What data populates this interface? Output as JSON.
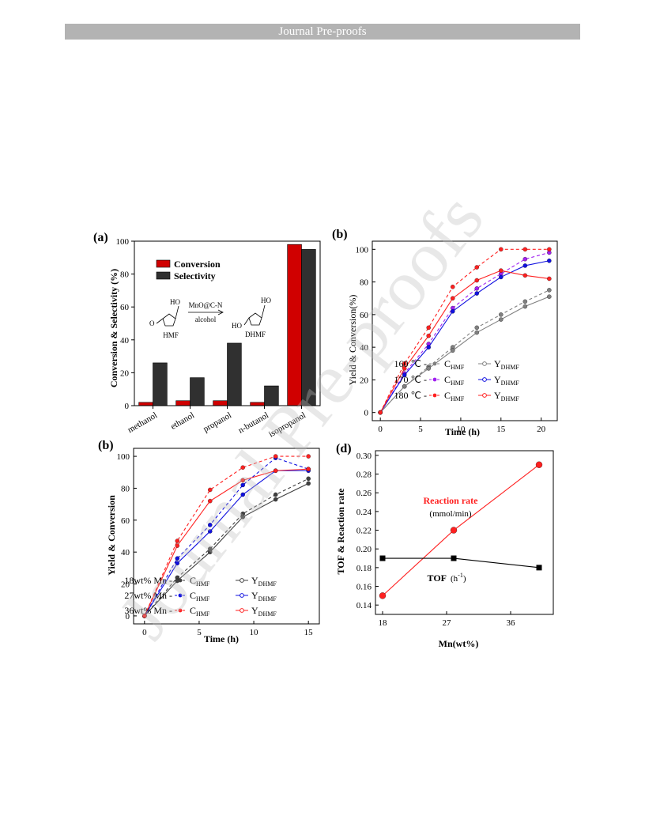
{
  "banner": {
    "text": "Journal Pre-proofs"
  },
  "watermark": {
    "text": "Journal Pre-proofs"
  },
  "chart_data": [
    {
      "panel_label": "(a)",
      "type": "bar",
      "ylabel": "Conversion & Selectivity (%)",
      "categories": [
        "methanol",
        "ethanol",
        "propanol",
        "n-butanol",
        "isopropanol"
      ],
      "series": [
        {
          "name": "Conversion",
          "values": [
            2,
            3,
            3,
            2,
            98
          ],
          "color": "#d00000"
        },
        {
          "name": "Selectivity",
          "values": [
            26,
            17,
            38,
            12,
            95
          ],
          "color": "#303030"
        }
      ],
      "ylim": [
        0,
        100
      ],
      "yticks": [
        0,
        20,
        40,
        60,
        80,
        100
      ],
      "legend_placement": "top-left",
      "scheme": {
        "reactant": "HMF",
        "product": "DHMF",
        "catalyst": "MnO@C-N",
        "solvent": "alcohol",
        "ho_label_1": "HO",
        "o_label_1": "O",
        "ho_label_2": "HO",
        "ho_label_3": "HO"
      }
    },
    {
      "panel_label": "(b)",
      "type": "line",
      "xlabel": "Time (h)",
      "ylabel": "Yield & Conversion(%)",
      "x": [
        0,
        3,
        6,
        9,
        12,
        15,
        18,
        21
      ],
      "xlim": [
        -1,
        22
      ],
      "ylim": [
        -5,
        105
      ],
      "xticks": [
        0,
        5,
        10,
        15,
        20
      ],
      "yticks": [
        0,
        20,
        40,
        60,
        80,
        100
      ],
      "series": [
        {
          "name": "C_HMF",
          "temp": "160 ℃",
          "style": "dashed",
          "color": "#808080",
          "values": [
            0,
            16,
            28,
            40,
            52,
            60,
            68,
            75
          ]
        },
        {
          "name": "Y_DHMF",
          "temp": "160 ℃",
          "style": "solid",
          "color": "#808080",
          "values": [
            0,
            16,
            27,
            38,
            49,
            57,
            65,
            71
          ]
        },
        {
          "name": "C_HMF",
          "temp": "170 ℃",
          "style": "dashed",
          "color": "#a020f0",
          "values": [
            0,
            24,
            42,
            64,
            76,
            85,
            94,
            98
          ]
        },
        {
          "name": "Y_DHMF",
          "temp": "170 ℃",
          "style": "solid",
          "color": "#1010e0",
          "values": [
            0,
            23,
            40,
            62,
            73,
            83,
            90,
            93
          ]
        },
        {
          "name": "C_HMF",
          "temp": "180 ℃",
          "style": "dashed",
          "color": "#ff2020",
          "values": [
            0,
            30,
            52,
            77,
            89,
            100,
            100,
            100
          ]
        },
        {
          "name": "Y_DHMF",
          "temp": "180 ℃",
          "style": "solid",
          "color": "#ff2020",
          "values": [
            0,
            27,
            47,
            70,
            81,
            87,
            84,
            82
          ]
        }
      ],
      "legend": [
        {
          "label": "160 ℃ -",
          "c": "C",
          "c_sub": "HMF",
          "y": "Y",
          "y_sub": "DHMF"
        },
        {
          "label": "170 ℃ -",
          "c": "C",
          "c_sub": "HMF",
          "y": "Y",
          "y_sub": "DHMF"
        },
        {
          "label": "180 ℃ -",
          "c": "C",
          "c_sub": "HMF",
          "y": "Y",
          "y_sub": "DHMF"
        }
      ],
      "legend_placement": "bottom-right"
    },
    {
      "panel_label": "(b)",
      "type": "line",
      "xlabel": "Time (h)",
      "ylabel": "Yield & Conversion",
      "x": [
        0,
        3,
        6,
        9,
        12,
        15
      ],
      "xlim": [
        -1,
        16
      ],
      "ylim": [
        -5,
        105
      ],
      "xticks": [
        0,
        5,
        10,
        15
      ],
      "yticks": [
        0,
        20,
        40,
        60,
        80,
        100
      ],
      "series": [
        {
          "name": "C_HMF",
          "loading": "18wt% Mn",
          "style": "dashed",
          "color": "#404040",
          "values": [
            0,
            24,
            42,
            64,
            76,
            86
          ]
        },
        {
          "name": "Y_DHMF",
          "loading": "18wt% Mn",
          "style": "solid",
          "color": "#404040",
          "values": [
            0,
            22,
            40,
            62,
            73,
            83
          ]
        },
        {
          "name": "C_HMF",
          "loading": "27wt% Mn",
          "style": "dashed",
          "color": "#1010e0",
          "values": [
            0,
            36,
            57,
            82,
            99,
            92
          ]
        },
        {
          "name": "Y_DHMF",
          "loading": "27wt% Mn",
          "style": "solid",
          "color": "#1010e0",
          "values": [
            0,
            33,
            53,
            76,
            91,
            91
          ]
        },
        {
          "name": "C_HMF",
          "loading": "36wt% Mn",
          "style": "dashed",
          "color": "#ff2020",
          "values": [
            0,
            47,
            79,
            93,
            100,
            100
          ]
        },
        {
          "name": "Y_DHMF",
          "loading": "36wt% Mn",
          "style": "solid",
          "color": "#ff2020",
          "values": [
            0,
            44,
            72,
            85,
            91,
            92
          ]
        }
      ],
      "legend": [
        {
          "label": "18wt% Mn -",
          "c": "C",
          "c_sub": "HMF",
          "y": "Y",
          "y_sub": "DHMF"
        },
        {
          "label": "27wt% Mn -",
          "c": "C",
          "c_sub": "HMF",
          "y": "Y",
          "y_sub": "DHMF"
        },
        {
          "label": "36wt% Mn -",
          "c": "C",
          "c_sub": "HMF",
          "y": "Y",
          "y_sub": "DHMF"
        }
      ],
      "legend_placement": "bottom-right"
    },
    {
      "panel_label": "(d)",
      "type": "line",
      "xlabel": "Mn(wt%)",
      "ylabel": "TOF & Reaction rate",
      "x": [
        18,
        28,
        40
      ],
      "xlim": [
        17,
        42
      ],
      "ylim": [
        0.13,
        0.305
      ],
      "xticks": [
        18,
        27,
        36
      ],
      "yticks": [
        0.14,
        0.16,
        0.18,
        0.2,
        0.22,
        0.24,
        0.26,
        0.28,
        0.3
      ],
      "ytick_labels": [
        "0.14",
        "0.16",
        "0.18",
        "0.20",
        "0.22",
        "0.24",
        "0.26",
        "0.28",
        "0.30"
      ],
      "series": [
        {
          "name": "Reaction rate",
          "unit": "(mmol/min)",
          "color": "#ff2020",
          "marker": "circle",
          "values": [
            0.15,
            0.22,
            0.29
          ]
        },
        {
          "name": "TOF",
          "unit": "(h",
          "unit_sup": "-1",
          "unit_end": ")",
          "color": "#000000",
          "marker": "square",
          "values": [
            0.19,
            0.19,
            0.18
          ]
        }
      ]
    }
  ]
}
